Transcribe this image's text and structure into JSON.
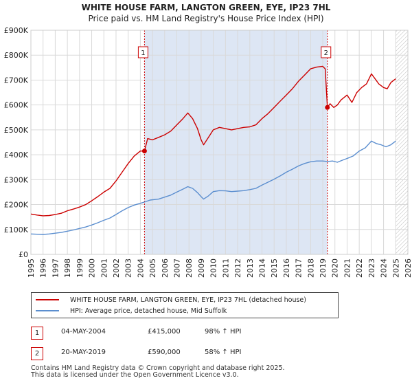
{
  "chart_data": {
    "type": "line",
    "title": "WHITE HOUSE FARM, LANGTON GREEN, EYE, IP23 7HL",
    "subtitle": "Price paid vs. HM Land Registry's House Price Index (HPI)",
    "xlim": [
      1995,
      2026
    ],
    "ylim": [
      0,
      900000
    ],
    "y_ticks": [
      {
        "value": 0,
        "label": "£0"
      },
      {
        "value": 100000,
        "label": "£100K"
      },
      {
        "value": 200000,
        "label": "£200K"
      },
      {
        "value": 300000,
        "label": "£300K"
      },
      {
        "value": 400000,
        "label": "£400K"
      },
      {
        "value": 500000,
        "label": "£500K"
      },
      {
        "value": 600000,
        "label": "£600K"
      },
      {
        "value": 700000,
        "label": "£700K"
      },
      {
        "value": 800000,
        "label": "£800K"
      },
      {
        "value": 900000,
        "label": "£900K"
      }
    ],
    "x_ticks": [
      "1995",
      "1996",
      "1997",
      "1998",
      "1999",
      "2000",
      "2001",
      "2002",
      "2003",
      "2004",
      "2005",
      "2006",
      "2007",
      "2008",
      "2009",
      "2010",
      "2011",
      "2012",
      "2013",
      "2014",
      "2015",
      "2016",
      "2017",
      "2018",
      "2019",
      "2020",
      "2021",
      "2022",
      "2023",
      "2024",
      "2025",
      "2026"
    ],
    "grid": true,
    "shaded_period": [
      2004.34,
      2019.38
    ],
    "future_hatch_from": 2025.0,
    "series": [
      {
        "name": "WHITE HOUSE FARM, LANGTON GREEN, EYE, IP23 7HL (detached house)",
        "color": "#cc0000",
        "points": [
          [
            1995.0,
            162000
          ],
          [
            1995.5,
            158000
          ],
          [
            1996.0,
            155000
          ],
          [
            1996.5,
            156000
          ],
          [
            1997.0,
            160000
          ],
          [
            1997.5,
            165000
          ],
          [
            1998.0,
            175000
          ],
          [
            1998.5,
            182000
          ],
          [
            1999.0,
            190000
          ],
          [
            1999.5,
            200000
          ],
          [
            2000.0,
            215000
          ],
          [
            2000.5,
            232000
          ],
          [
            2001.0,
            250000
          ],
          [
            2001.5,
            265000
          ],
          [
            2002.0,
            295000
          ],
          [
            2002.5,
            330000
          ],
          [
            2003.0,
            365000
          ],
          [
            2003.5,
            395000
          ],
          [
            2004.0,
            415000
          ],
          [
            2004.34,
            415000
          ],
          [
            2004.6,
            465000
          ],
          [
            2005.0,
            460000
          ],
          [
            2005.5,
            470000
          ],
          [
            2006.0,
            480000
          ],
          [
            2006.5,
            495000
          ],
          [
            2007.0,
            520000
          ],
          [
            2007.5,
            545000
          ],
          [
            2007.9,
            568000
          ],
          [
            2008.3,
            545000
          ],
          [
            2008.7,
            505000
          ],
          [
            2009.0,
            460000
          ],
          [
            2009.2,
            440000
          ],
          [
            2009.6,
            470000
          ],
          [
            2010.0,
            500000
          ],
          [
            2010.5,
            510000
          ],
          [
            2011.0,
            505000
          ],
          [
            2011.5,
            500000
          ],
          [
            2012.0,
            505000
          ],
          [
            2012.5,
            510000
          ],
          [
            2013.0,
            512000
          ],
          [
            2013.5,
            520000
          ],
          [
            2014.0,
            545000
          ],
          [
            2014.5,
            565000
          ],
          [
            2015.0,
            590000
          ],
          [
            2015.5,
            615000
          ],
          [
            2016.0,
            640000
          ],
          [
            2016.5,
            665000
          ],
          [
            2017.0,
            695000
          ],
          [
            2017.5,
            720000
          ],
          [
            2018.0,
            745000
          ],
          [
            2018.5,
            752000
          ],
          [
            2019.0,
            755000
          ],
          [
            2019.2,
            745000
          ],
          [
            2019.38,
            590000
          ],
          [
            2019.6,
            605000
          ],
          [
            2019.9,
            590000
          ],
          [
            2020.2,
            600000
          ],
          [
            2020.5,
            620000
          ],
          [
            2021.0,
            640000
          ],
          [
            2021.4,
            610000
          ],
          [
            2021.8,
            650000
          ],
          [
            2022.2,
            670000
          ],
          [
            2022.6,
            685000
          ],
          [
            2023.0,
            725000
          ],
          [
            2023.3,
            705000
          ],
          [
            2023.6,
            685000
          ],
          [
            2024.0,
            670000
          ],
          [
            2024.3,
            665000
          ],
          [
            2024.6,
            690000
          ],
          [
            2025.0,
            705000
          ]
        ]
      },
      {
        "name": "HPI: Average price, detached house, Mid Suffolk",
        "color": "#5b8ecf",
        "points": [
          [
            1995.0,
            82000
          ],
          [
            1995.5,
            81000
          ],
          [
            1996.0,
            80000
          ],
          [
            1996.5,
            82000
          ],
          [
            1997.0,
            85000
          ],
          [
            1997.5,
            88000
          ],
          [
            1998.0,
            93000
          ],
          [
            1998.5,
            98000
          ],
          [
            1999.0,
            104000
          ],
          [
            1999.5,
            110000
          ],
          [
            2000.0,
            118000
          ],
          [
            2000.5,
            127000
          ],
          [
            2001.0,
            137000
          ],
          [
            2001.5,
            146000
          ],
          [
            2002.0,
            160000
          ],
          [
            2002.5,
            175000
          ],
          [
            2003.0,
            188000
          ],
          [
            2003.5,
            198000
          ],
          [
            2004.0,
            205000
          ],
          [
            2004.34,
            210000
          ],
          [
            2004.8,
            218000
          ],
          [
            2005.5,
            222000
          ],
          [
            2006.0,
            230000
          ],
          [
            2006.5,
            238000
          ],
          [
            2007.0,
            250000
          ],
          [
            2007.5,
            262000
          ],
          [
            2007.9,
            272000
          ],
          [
            2008.3,
            265000
          ],
          [
            2008.7,
            248000
          ],
          [
            2009.0,
            232000
          ],
          [
            2009.2,
            222000
          ],
          [
            2009.6,
            235000
          ],
          [
            2010.0,
            252000
          ],
          [
            2010.5,
            256000
          ],
          [
            2011.0,
            255000
          ],
          [
            2011.5,
            252000
          ],
          [
            2012.0,
            254000
          ],
          [
            2012.5,
            256000
          ],
          [
            2013.0,
            260000
          ],
          [
            2013.5,
            265000
          ],
          [
            2014.0,
            278000
          ],
          [
            2014.5,
            290000
          ],
          [
            2015.0,
            302000
          ],
          [
            2015.5,
            315000
          ],
          [
            2016.0,
            330000
          ],
          [
            2016.5,
            342000
          ],
          [
            2017.0,
            355000
          ],
          [
            2017.5,
            365000
          ],
          [
            2018.0,
            372000
          ],
          [
            2018.5,
            375000
          ],
          [
            2019.0,
            375000
          ],
          [
            2019.38,
            373000
          ],
          [
            2019.8,
            375000
          ],
          [
            2020.2,
            370000
          ],
          [
            2020.6,
            378000
          ],
          [
            2021.0,
            385000
          ],
          [
            2021.5,
            395000
          ],
          [
            2022.0,
            415000
          ],
          [
            2022.5,
            428000
          ],
          [
            2023.0,
            455000
          ],
          [
            2023.4,
            445000
          ],
          [
            2023.8,
            440000
          ],
          [
            2024.2,
            432000
          ],
          [
            2024.6,
            440000
          ],
          [
            2025.0,
            455000
          ]
        ]
      }
    ],
    "annotations": [
      {
        "label": "1",
        "x": 2004.34,
        "y": 415000
      },
      {
        "label": "2",
        "x": 2019.38,
        "y": 590000
      }
    ],
    "legend_position": "bottom"
  },
  "transactions": [
    {
      "badge": "1",
      "date": "04-MAY-2004",
      "price": "£415,000",
      "hpi": "98% ↑ HPI"
    },
    {
      "badge": "2",
      "date": "20-MAY-2019",
      "price": "£590,000",
      "hpi": "58% ↑ HPI"
    }
  ],
  "footer": {
    "line1": "Contains HM Land Registry data © Crown copyright and database right 2025.",
    "line2": "This data is licensed under the Open Government Licence v3.0."
  }
}
